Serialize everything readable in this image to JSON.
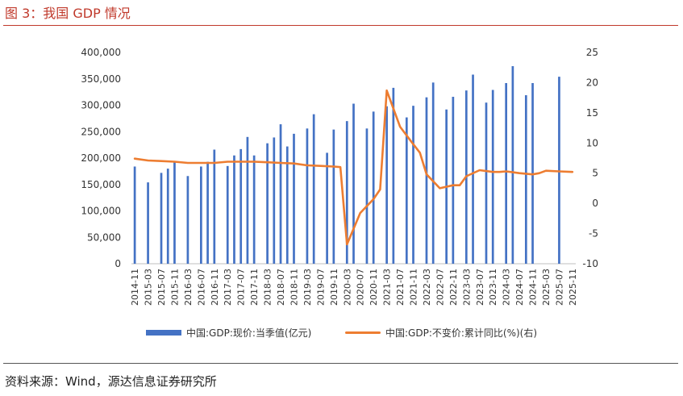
{
  "figure": {
    "title": "图 3：我国 GDP 情况",
    "source": "资料来源：Wind，源达信息证券研究所"
  },
  "colors": {
    "bar": "#4472c4",
    "line": "#ed7d31",
    "title": "#c0392b"
  },
  "chart_data": {
    "type": "bar+line",
    "categories": [
      "2014-11",
      "2015-01",
      "2015-03",
      "2015-05",
      "2015-07",
      "2015-09",
      "2015-11",
      "2016-01",
      "2016-03",
      "2016-05",
      "2016-07",
      "2016-09",
      "2016-11",
      "2017-01",
      "2017-03",
      "2017-05",
      "2017-07",
      "2017-09",
      "2017-11",
      "2018-01",
      "2018-03",
      "2018-05",
      "2018-07",
      "2018-09",
      "2018-11",
      "2019-01",
      "2019-03",
      "2019-05",
      "2019-07",
      "2019-09",
      "2019-11",
      "2020-01",
      "2020-03",
      "2020-05",
      "2020-07",
      "2020-09",
      "2020-11",
      "2021-01",
      "2021-03",
      "2021-05",
      "2021-07",
      "2021-09",
      "2021-11",
      "2022-01",
      "2022-03",
      "2022-05",
      "2022-07",
      "2022-09",
      "2022-11",
      "2023-01",
      "2023-03",
      "2023-05",
      "2023-07",
      "2023-09",
      "2023-11",
      "2024-01",
      "2024-03",
      "2024-05",
      "2024-07",
      "2024-09",
      "2024-11",
      "2025-01",
      "2025-03",
      "2025-05",
      "2025-07",
      "2025-09",
      "2025-11"
    ],
    "tick_labels": [
      "2014-11",
      "2015-03",
      "2015-07",
      "2015-11",
      "2016-03",
      "2016-07",
      "2016-11",
      "2017-03",
      "2017-07",
      "2017-11",
      "2018-03",
      "2018-07",
      "2018-11",
      "2019-03",
      "2019-07",
      "2019-11",
      "2020-03",
      "2020-07",
      "2020-11",
      "2021-03",
      "2021-07",
      "2021-11",
      "2022-03",
      "2022-07",
      "2022-11",
      "2023-03",
      "2023-07",
      "2023-11",
      "2024-03",
      "2024-07",
      "2024-11",
      "2025-03",
      "2025-07",
      "2025-11"
    ],
    "series": [
      {
        "name": "中国:GDP:现价:当季值(亿元)",
        "type": "bar",
        "axis": "left",
        "points": [
          {
            "x": "2014-11",
            "value": 184000
          },
          {
            "x": "2015-03",
            "value": 154000
          },
          {
            "x": "2015-07",
            "value": 172000
          },
          {
            "x": "2015-09",
            "value": 180000
          },
          {
            "x": "2015-11",
            "value": 193000
          },
          {
            "x": "2016-03",
            "value": 166000
          },
          {
            "x": "2016-07",
            "value": 184000
          },
          {
            "x": "2016-09",
            "value": 193000
          },
          {
            "x": "2016-11",
            "value": 216000
          },
          {
            "x": "2017-03",
            "value": 185000
          },
          {
            "x": "2017-05",
            "value": 205000
          },
          {
            "x": "2017-07",
            "value": 217000
          },
          {
            "x": "2017-09",
            "value": 240000
          },
          {
            "x": "2017-11",
            "value": 205000
          },
          {
            "x": "2018-03",
            "value": 228000
          },
          {
            "x": "2018-05",
            "value": 239000
          },
          {
            "x": "2018-07",
            "value": 264000
          },
          {
            "x": "2018-09",
            "value": 222000
          },
          {
            "x": "2018-11",
            "value": 246000
          },
          {
            "x": "2019-03",
            "value": 256000
          },
          {
            "x": "2019-05",
            "value": 283000
          },
          {
            "x": "2019-09",
            "value": 210000
          },
          {
            "x": "2019-11",
            "value": 254000
          },
          {
            "x": "2020-03",
            "value": 270000
          },
          {
            "x": "2020-05",
            "value": 303000
          },
          {
            "x": "2020-09",
            "value": 256000
          },
          {
            "x": "2020-11",
            "value": 288000
          },
          {
            "x": "2021-03",
            "value": 298000
          },
          {
            "x": "2021-05",
            "value": 333000
          },
          {
            "x": "2021-09",
            "value": 277000
          },
          {
            "x": "2021-11",
            "value": 299000
          },
          {
            "x": "2022-03",
            "value": 315000
          },
          {
            "x": "2022-05",
            "value": 343000
          },
          {
            "x": "2022-09",
            "value": 292000
          },
          {
            "x": "2022-11",
            "value": 316000
          },
          {
            "x": "2023-03",
            "value": 328000
          },
          {
            "x": "2023-05",
            "value": 358000
          },
          {
            "x": "2023-09",
            "value": 305000
          },
          {
            "x": "2023-11",
            "value": 329000
          },
          {
            "x": "2024-03",
            "value": 342000
          },
          {
            "x": "2024-05",
            "value": 374000
          },
          {
            "x": "2024-09",
            "value": 319000
          },
          {
            "x": "2024-11",
            "value": 342000
          },
          {
            "x": "2025-07",
            "value": 354000
          }
        ]
      },
      {
        "name": "中国:GDP:不变价:累计同比(%)(右)",
        "type": "line",
        "axis": "right",
        "points": [
          {
            "x": "2014-11",
            "value": 7.4
          },
          {
            "x": "2015-03",
            "value": 7.1
          },
          {
            "x": "2015-07",
            "value": 7.0
          },
          {
            "x": "2015-11",
            "value": 6.9
          },
          {
            "x": "2016-03",
            "value": 6.7
          },
          {
            "x": "2016-07",
            "value": 6.7
          },
          {
            "x": "2016-11",
            "value": 6.7
          },
          {
            "x": "2017-03",
            "value": 6.9
          },
          {
            "x": "2017-07",
            "value": 6.9
          },
          {
            "x": "2017-11",
            "value": 6.9
          },
          {
            "x": "2018-03",
            "value": 6.8
          },
          {
            "x": "2018-07",
            "value": 6.7
          },
          {
            "x": "2018-11",
            "value": 6.6
          },
          {
            "x": "2019-03",
            "value": 6.3
          },
          {
            "x": "2019-07",
            "value": 6.2
          },
          {
            "x": "2019-11",
            "value": 6.1
          },
          {
            "x": "2020-01",
            "value": 6.0
          },
          {
            "x": "2020-03",
            "value": -6.8
          },
          {
            "x": "2020-07",
            "value": -1.6
          },
          {
            "x": "2020-11",
            "value": 0.7
          },
          {
            "x": "2021-01",
            "value": 2.3
          },
          {
            "x": "2021-03",
            "value": 18.7
          },
          {
            "x": "2021-07",
            "value": 12.7
          },
          {
            "x": "2021-11",
            "value": 9.8
          },
          {
            "x": "2022-01",
            "value": 8.4
          },
          {
            "x": "2022-03",
            "value": 4.8
          },
          {
            "x": "2022-07",
            "value": 2.5
          },
          {
            "x": "2022-11",
            "value": 3.0
          },
          {
            "x": "2023-01",
            "value": 3.0
          },
          {
            "x": "2023-03",
            "value": 4.5
          },
          {
            "x": "2023-07",
            "value": 5.5
          },
          {
            "x": "2023-11",
            "value": 5.2
          },
          {
            "x": "2024-01",
            "value": 5.2
          },
          {
            "x": "2024-03",
            "value": 5.3
          },
          {
            "x": "2024-07",
            "value": 5.0
          },
          {
            "x": "2024-11",
            "value": 4.8
          },
          {
            "x": "2025-01",
            "value": 5.0
          },
          {
            "x": "2025-03",
            "value": 5.4
          },
          {
            "x": "2025-07",
            "value": 5.3
          },
          {
            "x": "2025-11",
            "value": 5.2
          }
        ]
      }
    ],
    "y_left": {
      "min": 0,
      "max": 400000,
      "step": 50000,
      "ticks": [
        "0",
        "50,000",
        "100,000",
        "150,000",
        "200,000",
        "250,000",
        "300,000",
        "350,000",
        "400,000"
      ]
    },
    "y_right": {
      "min": -10,
      "max": 25,
      "step": 5,
      "ticks": [
        "-10",
        "-5",
        "0",
        "5",
        "10",
        "15",
        "20",
        "25"
      ]
    },
    "legend": [
      {
        "label": "中国:GDP:现价:当季值(亿元)",
        "kind": "bar"
      },
      {
        "label": "中国:GDP:不变价:累计同比(%)(右)",
        "kind": "line"
      }
    ],
    "legend_position": "bottom",
    "grid": false
  }
}
